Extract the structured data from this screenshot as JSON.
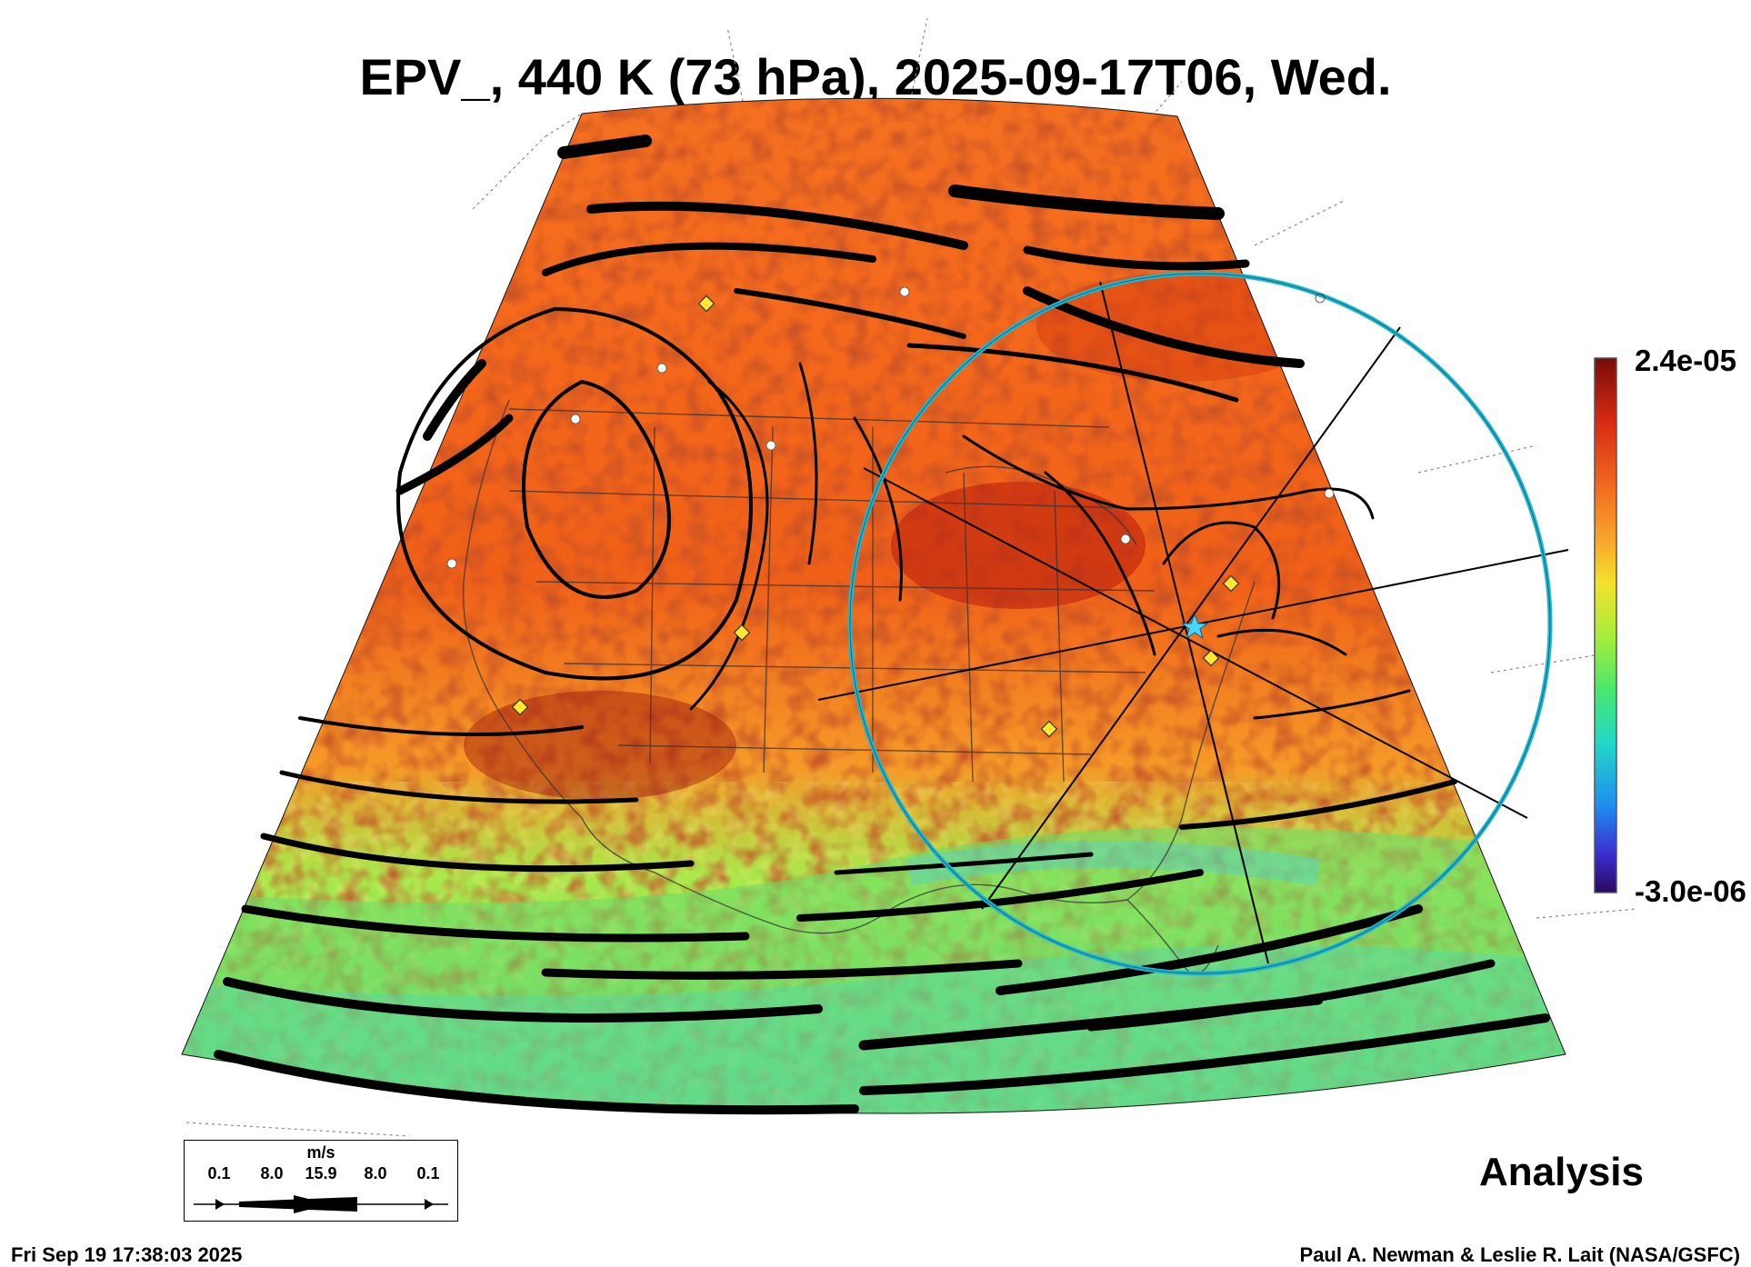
{
  "header": {
    "title": "EPV_, 440 K (73 hPa), 2025-09-17T06, Wed."
  },
  "colorbar": {
    "max_label": "2.4e-05",
    "min_label": "-3.0e-06",
    "colors": [
      "#2a0a5e",
      "#3b2bd0",
      "#1d8cf0",
      "#22d8c8",
      "#49e86a",
      "#a6ee3a",
      "#f4e12a",
      "#f8a52a",
      "#f26a1e",
      "#d92a12",
      "#7a0b08"
    ]
  },
  "wind_legend": {
    "unit": "m/s",
    "labels": [
      "0.1",
      "8.0",
      "15.9",
      "8.0",
      "0.1"
    ]
  },
  "footer": {
    "analysis_label": "Analysis",
    "timestamp": "Fri Sep 19 17:38:03 2025",
    "credit": "Paul A. Newman & Leslie R. Lait (NASA/GSFC)"
  },
  "map": {
    "field_colors": {
      "warm": "#f05a1a",
      "hot": "#b8200c",
      "mid": "#f8b030",
      "cool": "#8ee85a",
      "cold": "#3fc8c8"
    },
    "ring_color": "#1fb6d0",
    "marker_color": "#ffe830"
  }
}
